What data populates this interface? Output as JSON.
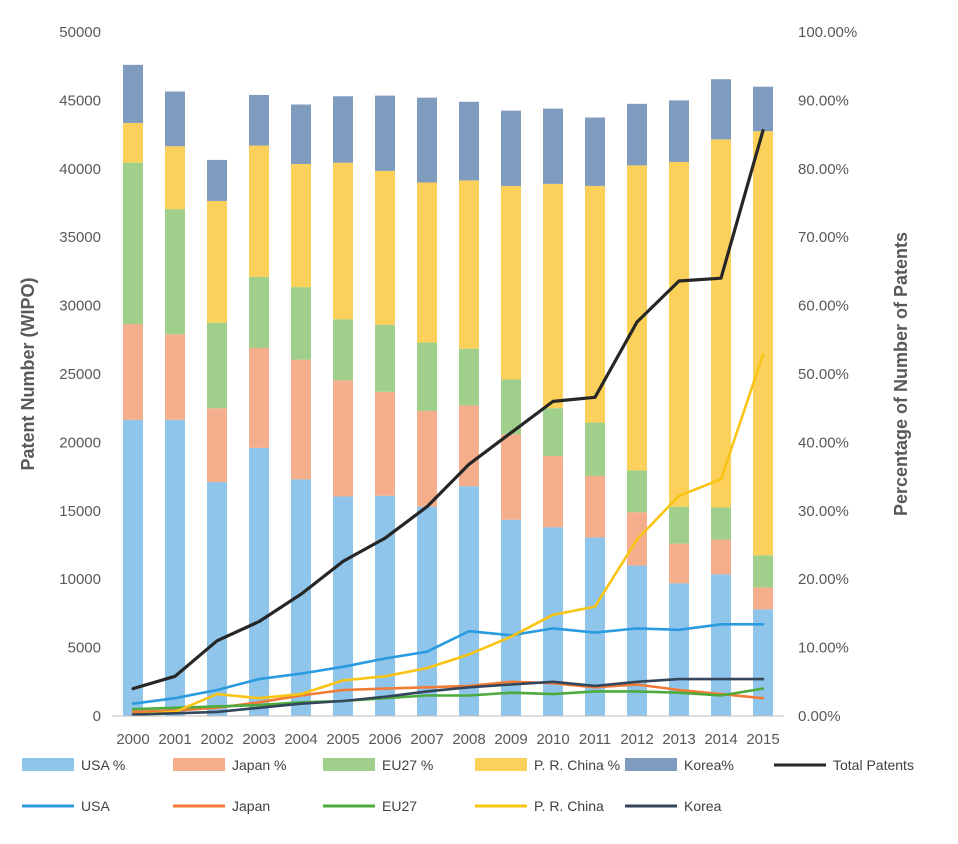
{
  "chart_data": {
    "type": "bar",
    "stacked": true,
    "categories": [
      "2000",
      "2001",
      "2002",
      "2003",
      "2004",
      "2005",
      "2006",
      "2007",
      "2008",
      "2009",
      "2010",
      "2011",
      "2012",
      "2013",
      "2014",
      "2015"
    ],
    "ylabel": "Patent Number  (WIPO)",
    "y2label": "Percentage of Number of Patents",
    "ylim": [
      0,
      50000
    ],
    "y2lim": [
      0,
      1.0
    ],
    "yticks": [
      "0",
      "5000",
      "10000",
      "15000",
      "20000",
      "25000",
      "30000",
      "35000",
      "40000",
      "45000",
      "50000"
    ],
    "y2ticks": [
      "0.00%",
      "10.00%",
      "20.00%",
      "30.00%",
      "40.00%",
      "50.00%",
      "60.00%",
      "70.00%",
      "80.00%",
      "90.00%",
      "100.00%"
    ],
    "grid": false,
    "legend_position": "bottom",
    "bar_series": [
      {
        "name": "USA %",
        "color": "#8fc5ea",
        "values": [
          0.433,
          0.433,
          0.342,
          0.392,
          0.346,
          0.321,
          0.322,
          0.306,
          0.336,
          0.287,
          0.276,
          0.261,
          0.22,
          0.194,
          0.207,
          0.156
        ]
      },
      {
        "name": "Japan %",
        "color": "#f4ae8c",
        "values": [
          0.14,
          0.125,
          0.108,
          0.146,
          0.175,
          0.17,
          0.152,
          0.14,
          0.118,
          0.125,
          0.104,
          0.09,
          0.078,
          0.058,
          0.051,
          0.032
        ]
      },
      {
        "name": "EU27 %",
        "color": "#9fcf8b",
        "values": [
          0.236,
          0.183,
          0.125,
          0.104,
          0.106,
          0.089,
          0.098,
          0.1,
          0.083,
          0.08,
          0.07,
          0.078,
          0.061,
          0.054,
          0.047,
          0.047
        ]
      },
      {
        "name": "P. R. China %",
        "color": "#fbd15b",
        "values": [
          0.058,
          0.092,
          0.178,
          0.192,
          0.18,
          0.229,
          0.225,
          0.234,
          0.246,
          0.283,
          0.328,
          0.346,
          0.446,
          0.504,
          0.538,
          0.62
        ]
      },
      {
        "name": "Korea%",
        "color": "#7f9bbe",
        "values": [
          0.085,
          0.08,
          0.06,
          0.074,
          0.087,
          0.097,
          0.11,
          0.124,
          0.115,
          0.11,
          0.11,
          0.1,
          0.09,
          0.09,
          0.088,
          0.065
        ]
      }
    ],
    "line_series": [
      {
        "name": "Total Patents",
        "color": "#262626",
        "values": [
          2000,
          2900,
          5500,
          6900,
          8900,
          11300,
          13000,
          15300,
          18400,
          20700,
          23000,
          23300,
          28800,
          31800,
          32000,
          42800
        ]
      },
      {
        "name": "USA",
        "color": "#2b9be0",
        "values": [
          900,
          1300,
          1900,
          2700,
          3100,
          3600,
          4200,
          4700,
          6200,
          5900,
          6400,
          6100,
          6400,
          6300,
          6700,
          6700
        ]
      },
      {
        "name": "Japan",
        "color": "#f07a36",
        "values": [
          300,
          400,
          600,
          1000,
          1500,
          1900,
          2000,
          2100,
          2200,
          2500,
          2400,
          2100,
          2300,
          1900,
          1600,
          1300
        ]
      },
      {
        "name": "EU27",
        "color": "#4cab3c",
        "values": [
          500,
          600,
          700,
          800,
          1000,
          1100,
          1300,
          1500,
          1500,
          1700,
          1600,
          1800,
          1800,
          1700,
          1500,
          2000
        ]
      },
      {
        "name": "P. R. China",
        "color": "#f9c413",
        "values": [
          100,
          300,
          1600,
          1300,
          1600,
          2600,
          2900,
          3500,
          4500,
          5800,
          7400,
          8000,
          12900,
          16100,
          17300,
          26400
        ]
      },
      {
        "name": "Korea",
        "color": "#33465a",
        "values": [
          100,
          200,
          300,
          600,
          900,
          1100,
          1400,
          1800,
          2100,
          2300,
          2500,
          2200,
          2500,
          2700,
          2700,
          2700
        ]
      }
    ]
  }
}
